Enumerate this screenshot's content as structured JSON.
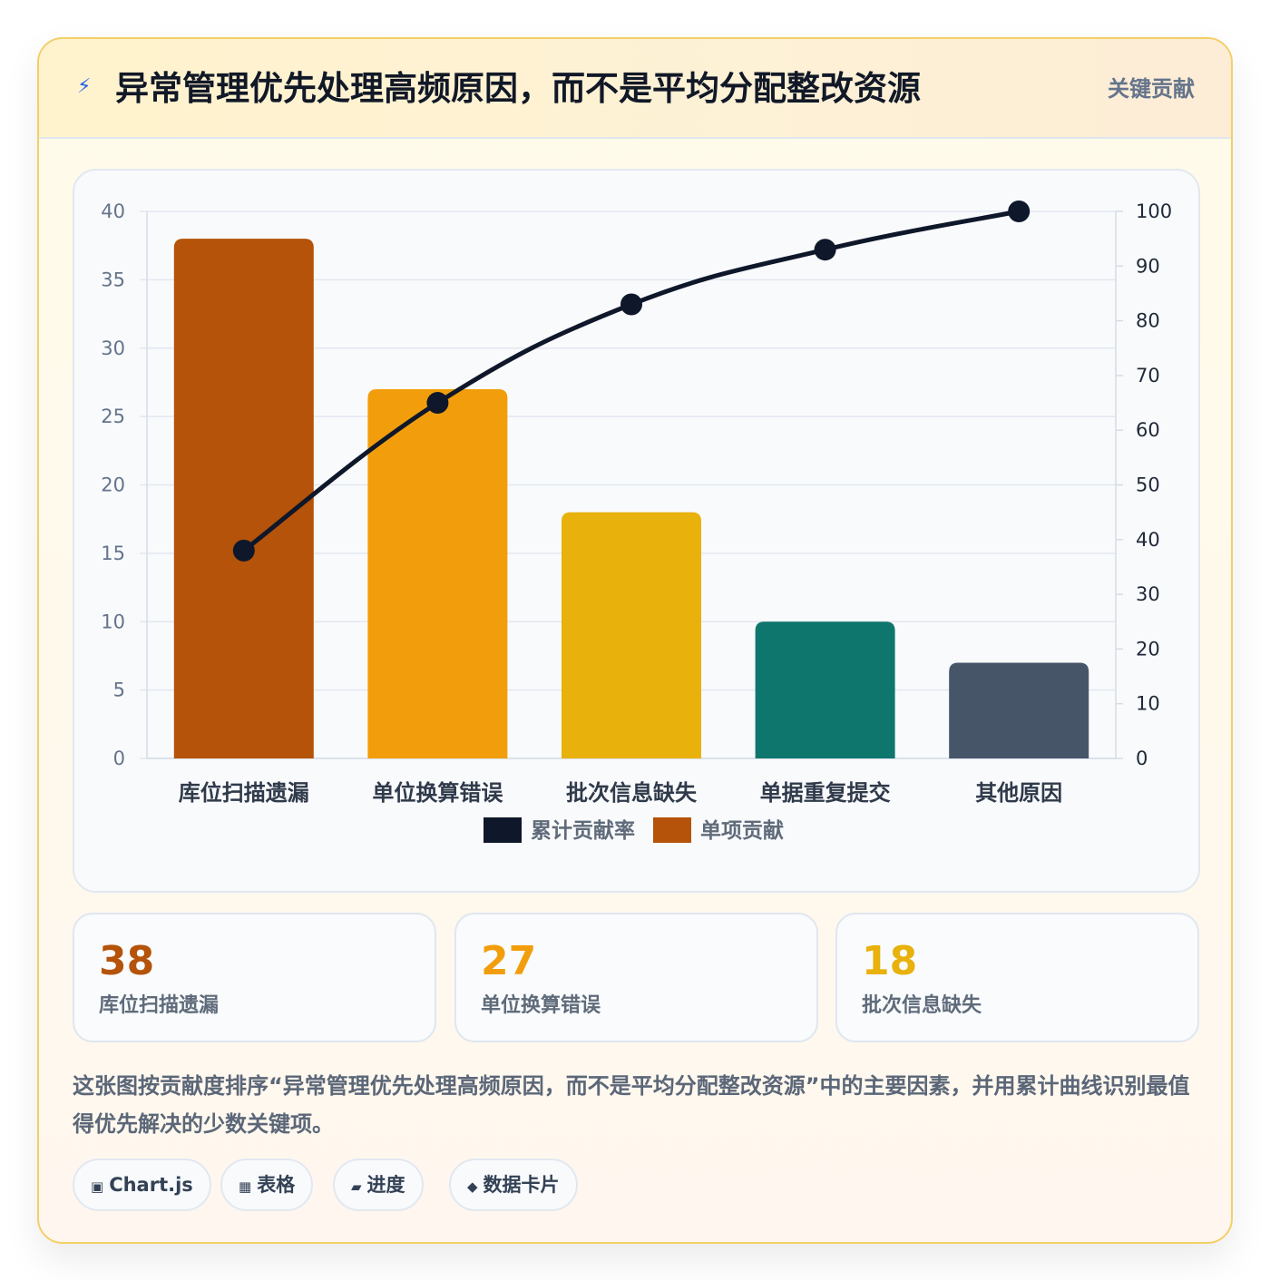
{
  "header": {
    "icon": "lightning-icon",
    "title": "异常管理优先处理高频原因，而不是平均分配整改资源",
    "badge": "关键贡献"
  },
  "chart_data": {
    "type": "bar",
    "categories": [
      "库位扫描遗漏",
      "单位换算错误",
      "批次信息缺失",
      "单据重复提交",
      "其他原因"
    ],
    "series": [
      {
        "name": "单项贡献",
        "type": "bar",
        "axis": "left",
        "values": [
          38,
          27,
          18,
          10,
          7
        ],
        "colors": [
          "#b45309",
          "#f29e0c",
          "#e8b10c",
          "#0f766e",
          "#475569"
        ]
      },
      {
        "name": "累计贡献率",
        "type": "line",
        "axis": "right",
        "values": [
          38,
          65,
          83,
          93,
          100
        ],
        "color": "#0f172a"
      }
    ],
    "y_left": {
      "ylim": [
        0,
        40
      ],
      "ticks": [
        "0",
        "5",
        "10",
        "15",
        "20",
        "25",
        "30",
        "35",
        "40"
      ]
    },
    "y_right": {
      "ylim": [
        0,
        100
      ],
      "ticks": [
        "0",
        "10",
        "20",
        "30",
        "40",
        "50",
        "60",
        "70",
        "80",
        "90",
        "100"
      ]
    },
    "legend": {
      "placement": "bottom",
      "entries": [
        "累计贡献率",
        "单项贡献"
      ],
      "colors": [
        "#0f172a",
        "#b45309"
      ]
    },
    "grid": true
  },
  "stats": [
    {
      "value": "38",
      "label": "库位扫描遗漏",
      "color": "#b45309"
    },
    {
      "value": "27",
      "label": "单位换算错误",
      "color": "#f29e0c"
    },
    {
      "value": "18",
      "label": "批次信息缺失",
      "color": "#e8b10c"
    }
  ],
  "description": "这张图按贡献度排序“异常管理优先处理高频原因，而不是平均分配整改资源”中的主要因素，并用累计曲线识别最值得优先解决的少数关键项。",
  "tags": [
    {
      "icon": "square-icon",
      "glyph": "▣",
      "label": "Chart.js"
    },
    {
      "icon": "table-icon",
      "glyph": "▦",
      "label": "表格"
    },
    {
      "icon": "progress-icon",
      "glyph": "▰",
      "label": "进度"
    },
    {
      "icon": "diamond-icon",
      "glyph": "◆",
      "label": "数据卡片"
    }
  ]
}
